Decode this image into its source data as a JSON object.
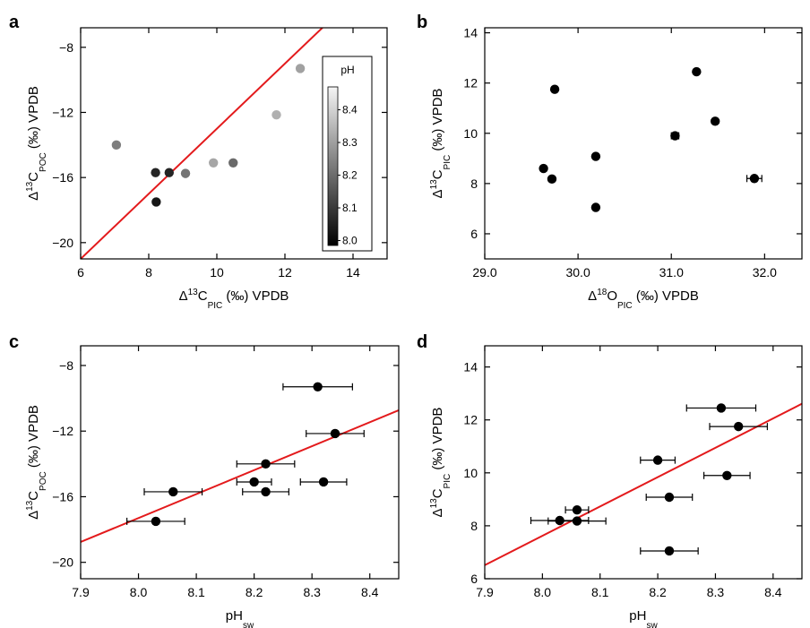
{
  "panels": [
    {
      "letter": "a",
      "xlabel": {
        "pre": "Δ",
        "sup": "13",
        "main": "C",
        "sub": "PIC",
        "post": " (‰) VPDB"
      },
      "ylabel": {
        "pre": "Δ",
        "sup": "13",
        "main": "C",
        "sub": "POC",
        "post": " (‰) VPDB"
      }
    },
    {
      "letter": "b",
      "xlabel": {
        "pre": "Δ",
        "sup": "18",
        "main": "O",
        "sub": "PIC",
        "post": " (‰) VPDB"
      },
      "ylabel": {
        "pre": "Δ",
        "sup": "13",
        "main": "C",
        "sub": "PIC",
        "post": " (‰) VPDB"
      }
    },
    {
      "letter": "c",
      "xlabel": {
        "pre": "",
        "sup": "",
        "main": "pH",
        "sub": "sw",
        "post": ""
      },
      "ylabel": {
        "pre": "Δ",
        "sup": "13",
        "main": "C",
        "sub": "POC",
        "post": " (‰) VPDB"
      }
    },
    {
      "letter": "d",
      "xlabel": {
        "pre": "",
        "sup": "",
        "main": "pH",
        "sub": "sw",
        "post": ""
      },
      "ylabel": {
        "pre": "Δ",
        "sup": "13",
        "main": "C",
        "sub": "PIC",
        "post": " (‰) VPDB"
      }
    }
  ],
  "colors": {
    "points": "#000000",
    "fit_line": "#e31a1c",
    "axes": "#000000"
  },
  "chart_data": [
    {
      "type": "scatter",
      "panel": "a",
      "xlim": [
        6,
        15
      ],
      "ylim": [
        -21,
        -6.8
      ],
      "xticks": [
        "6",
        "8",
        "10",
        "12",
        "14"
      ],
      "xtick_values": [
        6,
        8,
        10,
        12,
        14
      ],
      "yticks": [
        "−8",
        "−12",
        "−16",
        "−20"
      ],
      "ytick_values": [
        -8,
        -12,
        -16,
        -20
      ],
      "points": [
        {
          "x": 7.05,
          "y": -14.0,
          "ph": 8.24
        },
        {
          "x": 8.2,
          "y": -15.7,
          "ph": 8.06
        },
        {
          "x": 8.6,
          "y": -15.7,
          "ph": 8.06
        },
        {
          "x": 8.22,
          "y": -17.5,
          "ph": 8.03
        },
        {
          "x": 9.08,
          "y": -15.75,
          "ph": 8.22
        },
        {
          "x": 9.9,
          "y": -15.1,
          "ph": 8.32
        },
        {
          "x": 10.48,
          "y": -15.1,
          "ph": 8.2
        },
        {
          "x": 11.75,
          "y": -12.15,
          "ph": 8.34
        },
        {
          "x": 12.45,
          "y": -9.3,
          "ph": 8.31
        }
      ],
      "line": {
        "slope": 2.0,
        "intercept": -33.0
      },
      "colorbar": {
        "title": "pH",
        "ticks": [
          "8.0",
          "8.1",
          "8.2",
          "8.3",
          "8.4"
        ],
        "tick_values": [
          8.0,
          8.1,
          8.2,
          8.3,
          8.4
        ],
        "range": [
          7.985,
          8.47
        ]
      }
    },
    {
      "type": "scatter",
      "panel": "b",
      "xlim": [
        29.0,
        32.4
      ],
      "ylim": [
        5,
        14.2
      ],
      "xticks": [
        "29.0",
        "30.0",
        "31.0",
        "32.0"
      ],
      "xtick_values": [
        29.0,
        30.0,
        31.0,
        32.0
      ],
      "yticks": [
        "6",
        "8",
        "10",
        "12",
        "14"
      ],
      "ytick_values": [
        6,
        8,
        10,
        12,
        14
      ],
      "points": [
        {
          "x": 29.63,
          "y": 8.6
        },
        {
          "x": 29.72,
          "y": 8.18
        },
        {
          "x": 29.75,
          "y": 11.75
        },
        {
          "x": 30.19,
          "y": 9.08
        },
        {
          "x": 30.19,
          "y": 7.05
        },
        {
          "x": 31.04,
          "y": 9.9,
          "xerr": 0.04
        },
        {
          "x": 31.27,
          "y": 12.45
        },
        {
          "x": 31.47,
          "y": 10.48
        },
        {
          "x": 31.89,
          "y": 8.2,
          "xerr": 0.08
        }
      ]
    },
    {
      "type": "scatter",
      "panel": "c",
      "xlim": [
        7.9,
        8.45
      ],
      "ylim": [
        -21,
        -6.8
      ],
      "xticks": [
        "7.9",
        "8.0",
        "8.1",
        "8.2",
        "8.3",
        "8.4"
      ],
      "xtick_values": [
        7.9,
        8.0,
        8.1,
        8.2,
        8.3,
        8.4
      ],
      "yticks": [
        "−8",
        "−12",
        "−16",
        "−20"
      ],
      "ytick_values": [
        -8,
        -12,
        -16,
        -20
      ],
      "points": [
        {
          "x": 8.31,
          "y": -9.3,
          "xerr": 0.06
        },
        {
          "x": 8.34,
          "y": -12.15,
          "xerr": 0.05
        },
        {
          "x": 8.22,
          "y": -14.0,
          "xerr": 0.05
        },
        {
          "x": 8.2,
          "y": -15.1,
          "xerr": 0.03
        },
        {
          "x": 8.22,
          "y": -15.7,
          "xerr": 0.04
        },
        {
          "x": 8.32,
          "y": -15.1,
          "xerr": 0.04
        },
        {
          "x": 8.06,
          "y": -15.7,
          "xerr": 0.05,
          "xerr_small": 0.02
        },
        {
          "x": 8.03,
          "y": -17.5,
          "xerr": 0.05
        }
      ],
      "line": {
        "slope": 14.6,
        "intercept": -134.1
      }
    },
    {
      "type": "scatter",
      "panel": "d",
      "xlim": [
        7.9,
        8.45
      ],
      "ylim": [
        6,
        14.8
      ],
      "xticks": [
        "7.9",
        "8.0",
        "8.1",
        "8.2",
        "8.3",
        "8.4"
      ],
      "xtick_values": [
        7.9,
        8.0,
        8.1,
        8.2,
        8.3,
        8.4
      ],
      "yticks": [
        "6",
        "8",
        "10",
        "12",
        "14"
      ],
      "ytick_values": [
        6,
        8,
        10,
        12,
        14
      ],
      "points": [
        {
          "x": 8.31,
          "y": 12.45,
          "xerr": 0.06
        },
        {
          "x": 8.34,
          "y": 11.75,
          "xerr": 0.05
        },
        {
          "x": 8.2,
          "y": 10.48,
          "xerr": 0.03
        },
        {
          "x": 8.32,
          "y": 9.9,
          "xerr": 0.04
        },
        {
          "x": 8.22,
          "y": 9.08,
          "xerr": 0.04
        },
        {
          "x": 8.06,
          "y": 8.6,
          "xerr": 0.02
        },
        {
          "x": 8.03,
          "y": 8.2,
          "xerr": 0.05
        },
        {
          "x": 8.06,
          "y": 8.18,
          "xerr": 0.05
        },
        {
          "x": 8.22,
          "y": 7.05,
          "xerr": 0.05
        }
      ],
      "line": {
        "slope": 11.09,
        "intercept": -81.1
      }
    }
  ]
}
